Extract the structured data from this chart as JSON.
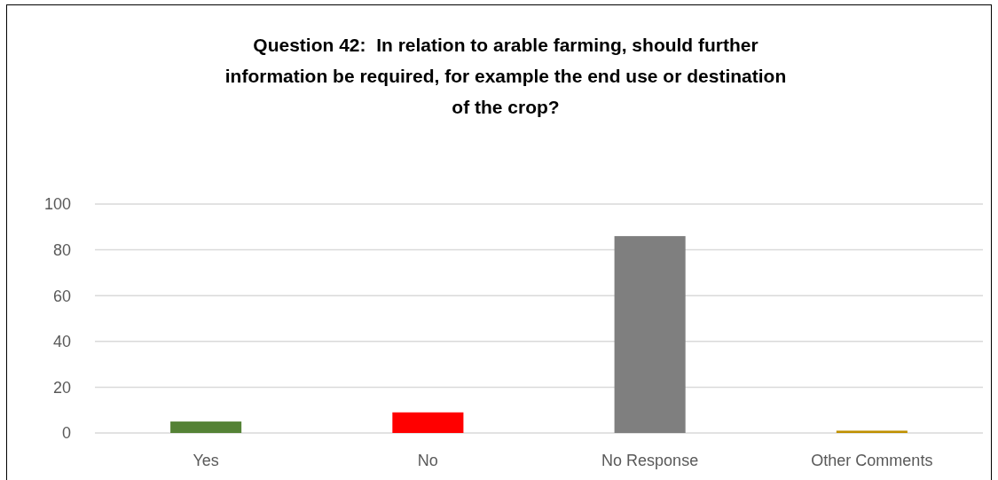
{
  "chart_data": {
    "type": "bar",
    "title": "Question 42:  In relation to arable farming, should further information be required, for example the end use or destination of the crop?",
    "categories": [
      "Yes",
      "No",
      "No Response",
      "Other Comments"
    ],
    "values": [
      5,
      9,
      86,
      1
    ],
    "colors": [
      "#548235",
      "#ff0000",
      "#7f7f7f",
      "#bf9000"
    ],
    "ylim": [
      0,
      100
    ],
    "yticks": [
      0,
      20,
      40,
      60,
      80,
      100
    ],
    "grid": "y"
  }
}
